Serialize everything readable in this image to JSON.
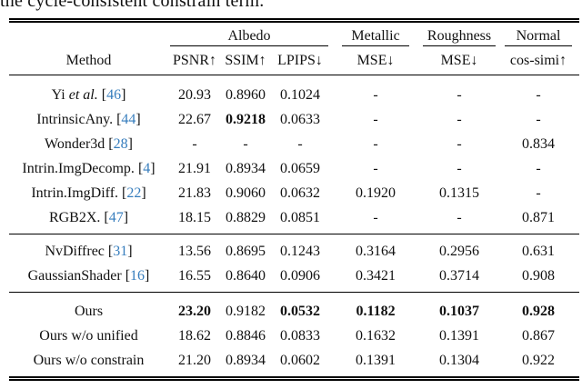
{
  "page": {
    "top_text": "the cycle-consistent constrain term."
  },
  "table": {
    "citation_color": "#367DBD",
    "method_header": "Method",
    "col_groups": [
      {
        "label": "Albedo",
        "span": 3
      },
      {
        "label": "Metallic",
        "span": 1
      },
      {
        "label": "Roughness",
        "span": 1
      },
      {
        "label": "Normal",
        "span": 1
      }
    ],
    "metric_headers": [
      "PSNR↑",
      "SSIM↑",
      "LPIPS↓",
      "MSE↓",
      "MSE↓",
      "cos-simi↑"
    ],
    "row_groups": [
      {
        "rows": [
          {
            "method_pre": "Yi ",
            "method_italic": "et al.",
            "cite": "46",
            "values": [
              "20.93",
              "0.8960",
              "0.1024",
              "-",
              "-",
              "-"
            ],
            "bold": [
              0,
              0,
              0,
              0,
              0,
              0
            ]
          },
          {
            "method_pre": "IntrinsicAny.",
            "cite": "44",
            "values": [
              "22.67",
              "0.9218",
              "0.0633",
              "-",
              "-",
              "-"
            ],
            "bold": [
              0,
              1,
              0,
              0,
              0,
              0
            ]
          },
          {
            "method_pre": "Wonder3d",
            "cite": "28",
            "values": [
              "-",
              "-",
              "-",
              "-",
              "-",
              "0.834"
            ],
            "bold": [
              0,
              0,
              0,
              0,
              0,
              0
            ]
          },
          {
            "method_pre": "Intrin.ImgDecomp.",
            "cite": "4",
            "values": [
              "21.91",
              "0.8934",
              "0.0659",
              "-",
              "-",
              "-"
            ],
            "bold": [
              0,
              0,
              0,
              0,
              0,
              0
            ]
          },
          {
            "method_pre": "Intrin.ImgDiff.",
            "cite": "22",
            "values": [
              "21.83",
              "0.9060",
              "0.0632",
              "0.1920",
              "0.1315",
              "-"
            ],
            "bold": [
              0,
              0,
              0,
              0,
              0,
              0
            ]
          },
          {
            "method_pre": "RGB2X.",
            "cite": "47",
            "values": [
              "18.15",
              "0.8829",
              "0.0851",
              "-",
              "-",
              "0.871"
            ],
            "bold": [
              0,
              0,
              0,
              0,
              0,
              0
            ]
          }
        ]
      },
      {
        "rows": [
          {
            "method_pre": "NvDiffrec",
            "cite": "31",
            "values": [
              "13.56",
              "0.8695",
              "0.1243",
              "0.3164",
              "0.2956",
              "0.631"
            ],
            "bold": [
              0,
              0,
              0,
              0,
              0,
              0
            ]
          },
          {
            "method_pre": "GaussianShader",
            "cite": "16",
            "values": [
              "16.55",
              "0.8640",
              "0.0906",
              "0.3421",
              "0.3714",
              "0.908"
            ],
            "bold": [
              0,
              0,
              0,
              0,
              0,
              0
            ]
          }
        ]
      },
      {
        "rows": [
          {
            "method_pre": "Ours",
            "values": [
              "23.20",
              "0.9182",
              "0.0532",
              "0.1182",
              "0.1037",
              "0.928"
            ],
            "bold": [
              1,
              0,
              1,
              1,
              1,
              1
            ]
          },
          {
            "method_pre": "Ours w/o unified",
            "values": [
              "18.62",
              "0.8846",
              "0.0833",
              "0.1632",
              "0.1391",
              "0.867"
            ],
            "bold": [
              0,
              0,
              0,
              0,
              0,
              0
            ]
          },
          {
            "method_pre": "Ours w/o constrain",
            "values": [
              "21.20",
              "0.8934",
              "0.0602",
              "0.1391",
              "0.1304",
              "0.922"
            ],
            "bold": [
              0,
              0,
              0,
              0,
              0,
              0
            ]
          }
        ]
      }
    ]
  }
}
